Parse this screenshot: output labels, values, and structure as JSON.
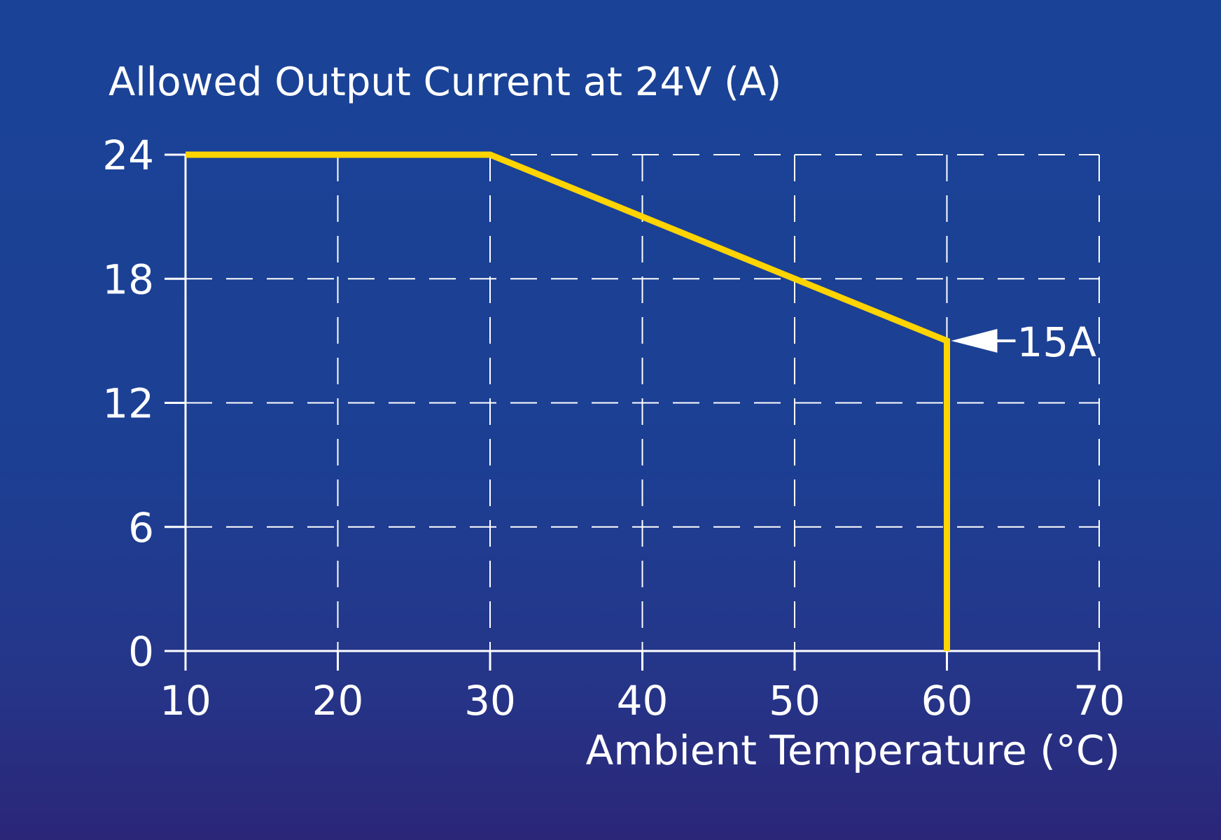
{
  "chart_data": {
    "type": "line",
    "title": "Allowed Output Current at 24V (A)",
    "xlabel": "Ambient Temperature (°C)",
    "ylabel": "",
    "xlim": [
      10,
      70
    ],
    "ylim": [
      0,
      24
    ],
    "x_ticks": [
      10,
      20,
      30,
      40,
      50,
      60,
      70
    ],
    "y_ticks": [
      0,
      6,
      12,
      18,
      24
    ],
    "x_tick_labels": [
      "10",
      "20",
      "30",
      "40",
      "50",
      "60",
      "70"
    ],
    "y_tick_labels": [
      "0",
      "6",
      "12",
      "18",
      "24"
    ],
    "grid": true,
    "grid_style": "dashed",
    "series": [
      {
        "x": [
          10,
          30,
          60,
          60
        ],
        "y": [
          24,
          24,
          15,
          0
        ],
        "color": "#ffd400"
      }
    ],
    "annotations": [
      {
        "text": "15A",
        "x": 60,
        "y": 15,
        "arrow": true
      }
    ],
    "colors": {
      "background_top": "#1a4397",
      "background_bottom": "#2b2678",
      "axes": "#ffffff",
      "grid": "#ffffff",
      "line": "#ffd400",
      "text": "#ffffff"
    }
  }
}
